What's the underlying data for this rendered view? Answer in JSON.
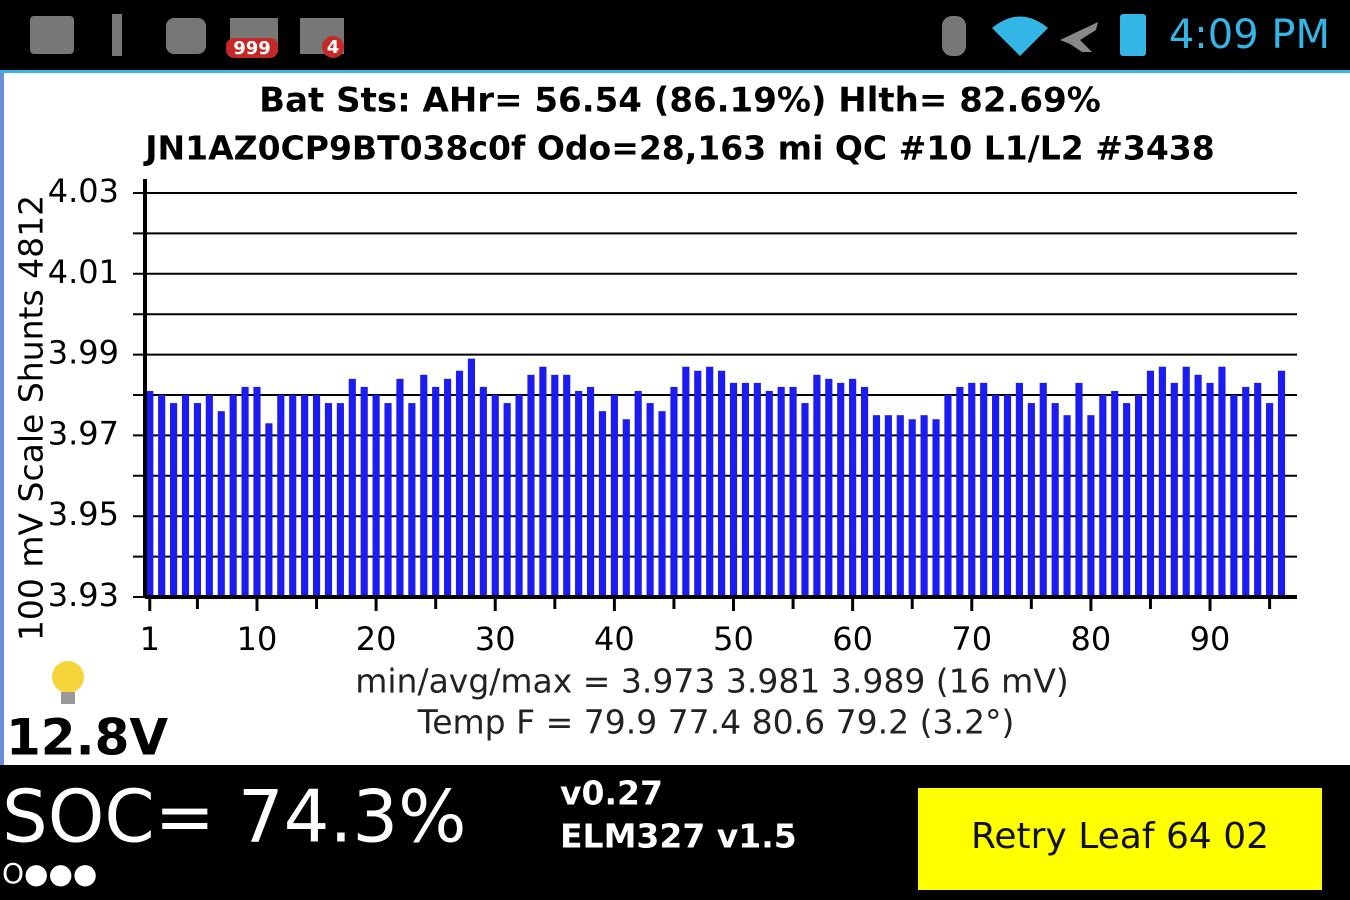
{
  "status_bar": {
    "time": "4:09 PM",
    "badges": [
      "999",
      "4"
    ]
  },
  "chart_data": {
    "type": "bar",
    "title": "Bat Sts:  AHr= 56.54 (86.19%) Hlth= 82.69%",
    "subtitle": "JN1AZ0CP9BT038c0f Odo=28,163 mi  QC #10  L1/L2 #3438",
    "y_label": "100 mV Scale   Shunts 4812",
    "annotations": [
      "min/avg/max = 3.973 3.981 3.989  (16 mV)",
      "Temp F = 79.9  77.4  80.6  79.2  (3.2°)"
    ],
    "color": "#1c1cf0",
    "x": [
      1,
      2,
      3,
      4,
      5,
      6,
      7,
      8,
      9,
      10,
      11,
      12,
      13,
      14,
      15,
      16,
      17,
      18,
      19,
      20,
      21,
      22,
      23,
      24,
      25,
      26,
      27,
      28,
      29,
      30,
      31,
      32,
      33,
      34,
      35,
      36,
      37,
      38,
      39,
      40,
      41,
      42,
      43,
      44,
      45,
      46,
      47,
      48,
      49,
      50,
      51,
      52,
      53,
      54,
      55,
      56,
      57,
      58,
      59,
      60,
      61,
      62,
      63,
      64,
      65,
      66,
      67,
      68,
      69,
      70,
      71,
      72,
      73,
      74,
      75,
      76,
      77,
      78,
      79,
      80,
      81,
      82,
      83,
      84,
      85,
      86,
      87,
      88,
      89,
      90,
      91,
      92,
      93,
      94,
      95,
      96
    ],
    "values": [
      3.981,
      3.98,
      3.978,
      3.98,
      3.978,
      3.98,
      3.976,
      3.98,
      3.982,
      3.982,
      3.973,
      3.98,
      3.98,
      3.98,
      3.98,
      3.978,
      3.978,
      3.984,
      3.982,
      3.98,
      3.978,
      3.984,
      3.978,
      3.985,
      3.982,
      3.984,
      3.986,
      3.989,
      3.982,
      3.98,
      3.978,
      3.98,
      3.985,
      3.987,
      3.985,
      3.985,
      3.981,
      3.982,
      3.976,
      3.98,
      3.974,
      3.981,
      3.978,
      3.976,
      3.982,
      3.987,
      3.986,
      3.987,
      3.986,
      3.983,
      3.983,
      3.983,
      3.981,
      3.982,
      3.982,
      3.978,
      3.985,
      3.984,
      3.983,
      3.984,
      3.982,
      3.975,
      3.975,
      3.975,
      3.974,
      3.975,
      3.974,
      3.98,
      3.982,
      3.983,
      3.983,
      3.98,
      3.98,
      3.983,
      3.978,
      3.983,
      3.978,
      3.975,
      3.983,
      3.975,
      3.98,
      3.981,
      3.978,
      3.98,
      3.986,
      3.987,
      3.983,
      3.987,
      3.985,
      3.983,
      3.987,
      3.98,
      3.982,
      3.983,
      3.978,
      3.986
    ],
    "xlim": [
      0.6,
      97.3
    ],
    "xticks": [
      1,
      10,
      20,
      30,
      40,
      50,
      60,
      70,
      80,
      90
    ],
    "xminor": [
      5,
      15,
      25,
      35,
      45,
      55,
      65,
      75,
      85,
      95
    ],
    "ylim": [
      3.93,
      4.03
    ],
    "yticks": [
      3.93,
      3.95,
      3.97,
      3.99,
      4.01,
      4.03
    ],
    "yminor": [
      3.94,
      3.96,
      3.98,
      4.0,
      4.02
    ],
    "grid": true
  },
  "voltage": "12.8V",
  "soc": "SOC= 74.3%",
  "progress": "O●●●",
  "version": "v0.27",
  "adapter": "ELM327 v1.5",
  "button": "Retry Leaf 64 02"
}
